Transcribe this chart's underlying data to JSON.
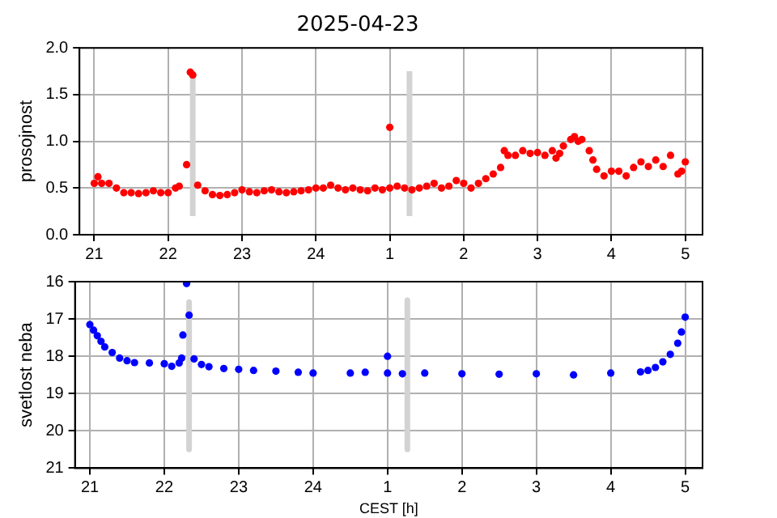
{
  "chart_data": [
    {
      "type": "scatter",
      "title": "2025-04-23",
      "ylabel": "prosojnost",
      "xlim": [
        "2025-04-23T20:48",
        "2025-04-24T05:14"
      ],
      "xticks": [
        {
          "value": "2025-04-23T21:00",
          "label": "21"
        },
        {
          "value": "2025-04-23T22:00",
          "label": "22"
        },
        {
          "value": "2025-04-23T23:00",
          "label": "23"
        },
        {
          "value": "2025-04-24T00:00",
          "label": "24"
        },
        {
          "value": "2025-04-24T01:00",
          "label": "1"
        },
        {
          "value": "2025-04-24T02:00",
          "label": "2"
        },
        {
          "value": "2025-04-24T03:00",
          "label": "3"
        },
        {
          "value": "2025-04-24T04:00",
          "label": "4"
        },
        {
          "value": "2025-04-24T05:00",
          "label": "5"
        }
      ],
      "ylim": [
        0,
        2
      ],
      "yticks": [
        {
          "value": 0,
          "label": "0.0"
        },
        {
          "value": 0.5,
          "label": "0.5"
        },
        {
          "value": 1,
          "label": "1.0"
        },
        {
          "value": 1.5,
          "label": "1.5"
        },
        {
          "value": 2,
          "label": "2.0"
        }
      ],
      "grid": true,
      "legend": false,
      "marker": "circle",
      "series": [
        {
          "type": "line",
          "color": "#d3d3d3",
          "x": [
            "2025-04-23T22:20",
            "2025-04-23T22:20"
          ],
          "values": [
            0.2,
            1.75
          ],
          "marker": "none"
        },
        {
          "type": "line",
          "color": "#d3d3d3",
          "x": [
            "2025-04-24T01:16",
            "2025-04-24T01:16"
          ],
          "values": [
            0.2,
            1.75
          ],
          "marker": "none"
        },
        {
          "color": "#ff0000",
          "x": [
            "2025-04-23T21:00",
            "2025-04-23T21:03",
            "2025-04-23T21:06",
            "2025-04-23T21:12",
            "2025-04-23T21:18",
            "2025-04-23T21:24",
            "2025-04-23T21:30",
            "2025-04-23T21:36",
            "2025-04-23T21:42",
            "2025-04-23T21:48",
            "2025-04-23T21:54",
            "2025-04-23T22:00",
            "2025-04-23T22:06",
            "2025-04-23T22:09",
            "2025-04-23T22:15",
            "2025-04-23T22:18",
            "2025-04-23T22:20",
            "2025-04-23T22:24",
            "2025-04-23T22:30",
            "2025-04-23T22:36",
            "2025-04-23T22:42",
            "2025-04-23T22:48",
            "2025-04-23T22:54",
            "2025-04-23T23:00",
            "2025-04-23T23:06",
            "2025-04-23T23:12",
            "2025-04-23T23:18",
            "2025-04-23T23:24",
            "2025-04-23T23:30",
            "2025-04-23T23:36",
            "2025-04-23T23:42",
            "2025-04-23T23:48",
            "2025-04-23T23:54",
            "2025-04-24T00:00",
            "2025-04-24T00:06",
            "2025-04-24T00:12",
            "2025-04-24T00:18",
            "2025-04-24T00:24",
            "2025-04-24T00:30",
            "2025-04-24T00:36",
            "2025-04-24T00:42",
            "2025-04-24T00:48",
            "2025-04-24T00:54",
            "2025-04-24T01:00",
            "2025-04-24T01:00",
            "2025-04-24T01:06",
            "2025-04-24T01:12",
            "2025-04-24T01:18",
            "2025-04-24T01:24",
            "2025-04-24T01:30",
            "2025-04-24T01:36",
            "2025-04-24T01:42",
            "2025-04-24T01:48",
            "2025-04-24T01:54",
            "2025-04-24T02:00",
            "2025-04-24T02:06",
            "2025-04-24T02:12",
            "2025-04-24T02:18",
            "2025-04-24T02:24",
            "2025-04-24T02:30",
            "2025-04-24T02:33",
            "2025-04-24T02:36",
            "2025-04-24T02:42",
            "2025-04-24T02:48",
            "2025-04-24T02:54",
            "2025-04-24T03:00",
            "2025-04-24T03:06",
            "2025-04-24T03:12",
            "2025-04-24T03:15",
            "2025-04-24T03:18",
            "2025-04-24T03:21",
            "2025-04-24T03:27",
            "2025-04-24T03:30",
            "2025-04-24T03:33",
            "2025-04-24T03:36",
            "2025-04-24T03:42",
            "2025-04-24T03:45",
            "2025-04-24T03:48",
            "2025-04-24T03:54",
            "2025-04-24T04:00",
            "2025-04-24T04:06",
            "2025-04-24T04:12",
            "2025-04-24T04:18",
            "2025-04-24T04:24",
            "2025-04-24T04:30",
            "2025-04-24T04:36",
            "2025-04-24T04:42",
            "2025-04-24T04:48",
            "2025-04-24T04:54",
            "2025-04-24T04:57",
            "2025-04-24T05:00"
          ],
          "values": [
            0.55,
            0.62,
            0.55,
            0.55,
            0.5,
            0.45,
            0.45,
            0.44,
            0.45,
            0.47,
            0.45,
            0.45,
            0.5,
            0.52,
            0.75,
            1.74,
            1.71,
            0.53,
            0.47,
            0.43,
            0.42,
            0.43,
            0.45,
            0.48,
            0.46,
            0.45,
            0.47,
            0.48,
            0.46,
            0.45,
            0.46,
            0.47,
            0.48,
            0.5,
            0.5,
            0.53,
            0.5,
            0.48,
            0.5,
            0.48,
            0.47,
            0.5,
            0.48,
            1.15,
            0.5,
            0.52,
            0.5,
            0.48,
            0.5,
            0.52,
            0.55,
            0.5,
            0.52,
            0.58,
            0.55,
            0.5,
            0.55,
            0.6,
            0.65,
            0.72,
            0.9,
            0.85,
            0.85,
            0.9,
            0.87,
            0.88,
            0.85,
            0.9,
            0.82,
            0.87,
            0.95,
            1.02,
            1.05,
            1.0,
            1.02,
            0.9,
            0.8,
            0.7,
            0.63,
            0.68,
            0.68,
            0.63,
            0.72,
            0.78,
            0.73,
            0.8,
            0.73,
            0.85,
            0.65,
            0.68,
            0.78
          ]
        }
      ]
    },
    {
      "type": "scatter",
      "xlabel": "CEST [h]",
      "ylabel": "svetlost neba",
      "xlim": [
        "2025-04-23T20:48",
        "2025-04-24T05:14"
      ],
      "xticks": [
        {
          "value": "2025-04-23T21:00",
          "label": "21"
        },
        {
          "value": "2025-04-23T22:00",
          "label": "22"
        },
        {
          "value": "2025-04-23T23:00",
          "label": "23"
        },
        {
          "value": "2025-04-24T00:00",
          "label": "24"
        },
        {
          "value": "2025-04-24T01:00",
          "label": "1"
        },
        {
          "value": "2025-04-24T02:00",
          "label": "2"
        },
        {
          "value": "2025-04-24T03:00",
          "label": "3"
        },
        {
          "value": "2025-04-24T04:00",
          "label": "4"
        },
        {
          "value": "2025-04-24T05:00",
          "label": "5"
        }
      ],
      "ylim": [
        21,
        16
      ],
      "yticks": [
        16,
        17,
        18,
        19,
        20,
        21
      ],
      "grid": true,
      "legend": false,
      "marker": "circle",
      "series": [
        {
          "type": "line",
          "color": "#d3d3d3",
          "x": [
            "2025-04-23T22:20",
            "2025-04-23T22:20"
          ],
          "values": [
            16.55,
            20.5
          ],
          "marker": "none"
        },
        {
          "type": "line",
          "color": "#d3d3d3",
          "x": [
            "2025-04-24T01:16",
            "2025-04-24T01:16"
          ],
          "values": [
            16.5,
            20.5
          ],
          "marker": "none"
        },
        {
          "color": "#0000ff",
          "x": [
            "2025-04-23T21:00",
            "2025-04-23T21:03",
            "2025-04-23T21:06",
            "2025-04-23T21:09",
            "2025-04-23T21:12",
            "2025-04-23T21:18",
            "2025-04-23T21:24",
            "2025-04-23T21:30",
            "2025-04-23T21:36",
            "2025-04-23T21:48",
            "2025-04-23T22:00",
            "2025-04-23T22:06",
            "2025-04-23T22:12",
            "2025-04-23T22:14",
            "2025-04-23T22:15",
            "2025-04-23T22:18",
            "2025-04-23T22:20",
            "2025-04-23T22:24",
            "2025-04-23T22:30",
            "2025-04-23T22:36",
            "2025-04-23T22:48",
            "2025-04-23T23:00",
            "2025-04-23T23:12",
            "2025-04-23T23:30",
            "2025-04-23T23:48",
            "2025-04-24T00:00",
            "2025-04-24T00:30",
            "2025-04-24T00:42",
            "2025-04-24T01:00",
            "2025-04-24T01:00",
            "2025-04-24T01:12",
            "2025-04-24T01:30",
            "2025-04-24T02:00",
            "2025-04-24T02:30",
            "2025-04-24T03:00",
            "2025-04-24T03:30",
            "2025-04-24T04:00",
            "2025-04-24T04:24",
            "2025-04-24T04:30",
            "2025-04-24T04:36",
            "2025-04-24T04:42",
            "2025-04-24T04:48",
            "2025-04-24T04:54",
            "2025-04-24T04:57",
            "2025-04-24T05:00"
          ],
          "values": [
            17.15,
            17.3,
            17.45,
            17.6,
            17.75,
            17.9,
            18.05,
            18.12,
            18.17,
            18.18,
            18.2,
            18.27,
            18.18,
            18.05,
            17.43,
            16.05,
            16.9,
            18.07,
            18.22,
            18.28,
            18.33,
            18.35,
            18.38,
            18.4,
            18.43,
            18.45,
            18.45,
            18.43,
            18.0,
            18.45,
            18.47,
            18.45,
            18.47,
            18.48,
            18.47,
            18.5,
            18.45,
            18.42,
            18.38,
            18.3,
            18.15,
            17.95,
            17.65,
            17.35,
            16.95
          ]
        }
      ]
    }
  ]
}
